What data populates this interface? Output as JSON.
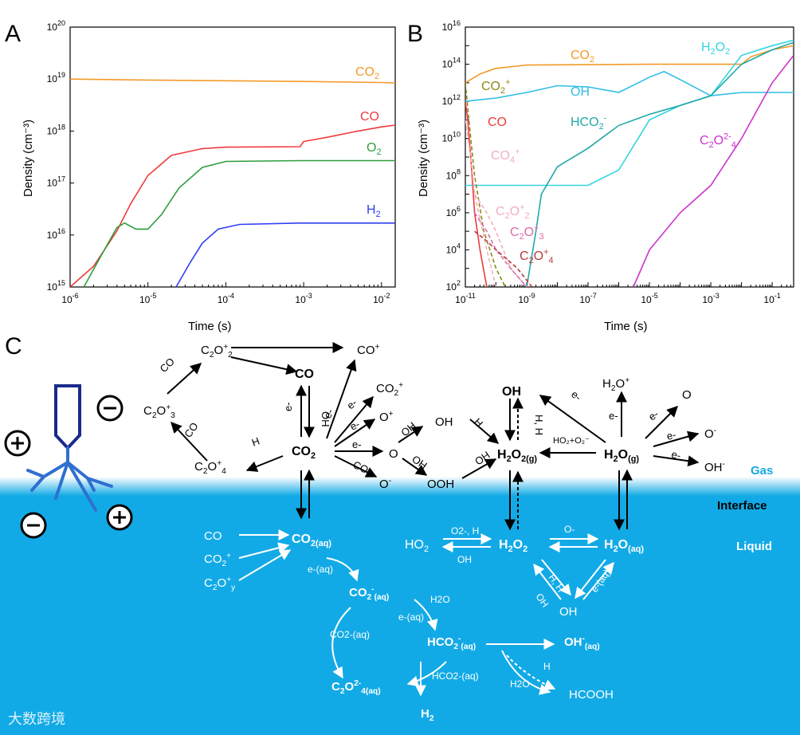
{
  "panels": {
    "a": "A",
    "b": "B",
    "c": "C"
  },
  "colors": {
    "co2": "#f39a2a",
    "co": "#ef3b3b",
    "o2": "#2e9e3e",
    "h2": "#2f3ff0",
    "h2o2": "#34d4e0",
    "oh": "#30bde6",
    "hco2": "#1fa8a8",
    "c2o4": "#cc33cc",
    "co2p": "#8a8a1a",
    "c2o2p": "#f0b0c0",
    "c2o3p": "#d86aa8",
    "c2o4p": "#b83a3a",
    "liquid": "#12aae6",
    "watermark": "#ffffff"
  },
  "chart_data": [
    {
      "id": "A",
      "type": "line",
      "xscale": "log",
      "yscale": "log",
      "xlabel": "Time (s)",
      "ylabel": "Density (cm⁻³)",
      "xlim": [
        1e-06,
        0.015
      ],
      "ylim": [
        1000000000000000.0,
        1e+20
      ],
      "xticks": [
        [
          "10",
          "-6"
        ],
        [
          "10",
          "-5"
        ],
        [
          "10",
          "-4"
        ],
        [
          "10",
          "-3"
        ],
        [
          "10",
          "-2"
        ]
      ],
      "yticks": [
        [
          "10",
          "15"
        ],
        [
          "10",
          "16"
        ],
        [
          "10",
          "17"
        ],
        [
          "10",
          "18"
        ],
        [
          "10",
          "19"
        ],
        [
          "10",
          "20"
        ]
      ],
      "series": [
        {
          "name": "CO2",
          "label": "CO",
          "sub": "2",
          "color_key": "co2",
          "points": [
            [
              1e-06,
              1e+19
            ],
            [
              1e-05,
              9.6e+18
            ],
            [
              0.0001,
              9.3e+18
            ],
            [
              0.001,
              9e+18
            ],
            [
              0.01,
              8.6e+18
            ],
            [
              0.015,
              8.4e+18
            ]
          ]
        },
        {
          "name": "CO",
          "label": "CO",
          "sub": "",
          "color_key": "co",
          "points": [
            [
              1e-06,
              1000000000000000.0
            ],
            [
              2e-06,
              2500000000000000.0
            ],
            [
              4e-06,
              1.2e+16
            ],
            [
              6e-06,
              4e+16
            ],
            [
              1e-05,
              1.4e+17
            ],
            [
              2e-05,
              3.4e+17
            ],
            [
              5e-05,
              4.6e+17
            ],
            [
              0.0001,
              4.9e+17
            ],
            [
              0.0009,
              5e+17
            ],
            [
              0.001,
              6.3e+17
            ],
            [
              0.002,
              7.6e+17
            ],
            [
              0.005,
              1e+18
            ],
            [
              0.01,
              1.2e+18
            ],
            [
              0.015,
              1.3e+18
            ]
          ]
        },
        {
          "name": "O2",
          "label": "O",
          "sub": "2",
          "color_key": "o2",
          "points": [
            [
              1.5e-06,
              1000000000000000.0
            ],
            [
              2.5e-06,
              4000000000000000.0
            ],
            [
              4e-06,
              1.4e+16
            ],
            [
              5e-06,
              1.7e+16
            ],
            [
              7e-06,
              1.3e+16
            ],
            [
              1e-05,
              1.3e+16
            ],
            [
              1.5e-05,
              2.5e+16
            ],
            [
              2.5e-05,
              8e+16
            ],
            [
              5e-05,
              2e+17
            ],
            [
              0.0001,
              2.6e+17
            ],
            [
              0.0009,
              2.7e+17
            ],
            [
              0.015,
              2.7e+17
            ]
          ]
        },
        {
          "name": "H2",
          "label": "H",
          "sub": "2",
          "color_key": "h2",
          "points": [
            [
              2.3e-05,
              1000000000000000.0
            ],
            [
              3.5e-05,
              3000000000000000.0
            ],
            [
              5e-05,
              7000000000000000.0
            ],
            [
              8e-05,
              1.3e+16
            ],
            [
              0.00015,
              1.6e+16
            ],
            [
              0.0009,
              1.7e+16
            ],
            [
              0.015,
              1.7e+16
            ]
          ]
        }
      ]
    },
    {
      "id": "B",
      "type": "line",
      "xscale": "log",
      "yscale": "log",
      "xlabel": "Time (s)",
      "ylabel": "Density (cm⁻³)",
      "xlim": [
        1e-11,
        0.5
      ],
      "ylim": [
        100.0,
        1e+16
      ],
      "xticks": [
        [
          "10",
          "-11"
        ],
        [
          "10",
          "-9"
        ],
        [
          "10",
          "-7"
        ],
        [
          "10",
          "-5"
        ],
        [
          "10",
          "-3"
        ],
        [
          "10",
          "-1"
        ]
      ],
      "yticks": [
        [
          "10",
          "2"
        ],
        [
          "10",
          "4"
        ],
        [
          "10",
          "6"
        ],
        [
          "10",
          "8"
        ],
        [
          "10",
          "10"
        ],
        [
          "10",
          "12"
        ],
        [
          "10",
          "14"
        ],
        [
          "10",
          "16"
        ]
      ],
      "series": [
        {
          "name": "CO2",
          "label": "CO",
          "sub": "2",
          "sup": "",
          "color_key": "co2",
          "points": [
            [
              1e-11,
              10000000000000.0
            ],
            [
              3e-11,
              30000000000000.0
            ],
            [
              1e-10,
              60000000000000.0
            ],
            [
              1e-09,
              90000000000000.0
            ],
            [
              1e-05,
              100000000000000.0
            ],
            [
              0.01,
              100000000000000.0
            ],
            [
              0.02,
              250000000000000.0
            ],
            [
              0.1,
              600000000000000.0
            ],
            [
              0.5,
              1000000000000000.0
            ]
          ]
        },
        {
          "name": "OH",
          "label": "OH",
          "sub": "",
          "sup": "",
          "color_key": "oh",
          "points": [
            [
              1e-11,
              1000000000000.0
            ],
            [
              1e-10,
              1500000000000.0
            ],
            [
              1e-09,
              3000000000000.0
            ],
            [
              1e-08,
              7000000000000.0
            ],
            [
              1e-07,
              6000000000000.0
            ],
            [
              1e-06,
              3000000000000.0
            ],
            [
              1e-05,
              20000000000000.0
            ],
            [
              3e-05,
              40000000000000.0
            ],
            [
              0.0001,
              15000000000000.0
            ],
            [
              0.001,
              2000000000000.0
            ],
            [
              0.01,
              3000000000000.0
            ],
            [
              0.5,
              3000000000000.0
            ]
          ]
        },
        {
          "name": "H2O2",
          "label": "H",
          "sub": "2",
          "mid": "O",
          "sub2": "2",
          "sup": "",
          "color_key": "h2o2",
          "points": [
            [
              1e-11,
              30000000.0
            ],
            [
              1e-09,
              30000000.0
            ],
            [
              1e-07,
              30000000.0
            ],
            [
              1e-06,
              200000000.0
            ],
            [
              1e-05,
              100000000000.0
            ],
            [
              0.0001,
              600000000000.0
            ],
            [
              0.001,
              2000000000000.0
            ],
            [
              0.01,
              300000000000000.0
            ],
            [
              0.1,
              1000000000000000.0
            ],
            [
              0.5,
              2000000000000000.0
            ]
          ]
        },
        {
          "name": "HCO2-",
          "label": "HCO",
          "sub": "2",
          "sup": "-",
          "color_key": "hco2",
          "points": [
            [
              1e-09,
              100.0
            ],
            [
              2e-09,
              100000.0
            ],
            [
              3e-09,
              10000000.0
            ],
            [
              1e-08,
              300000000.0
            ],
            [
              1e-07,
              3000000000.0
            ],
            [
              1e-06,
              50000000000.0
            ],
            [
              1e-05,
              200000000000.0
            ],
            [
              0.0001,
              600000000000.0
            ],
            [
              0.001,
              2000000000000.0
            ],
            [
              0.01,
              100000000000000.0
            ],
            [
              0.1,
              600000000000000.0
            ],
            [
              0.5,
              1500000000000000.0
            ]
          ]
        },
        {
          "name": "C2O4 2-",
          "label": "C",
          "sub": "2",
          "mid": "O",
          "sub2": "4",
          "sup": "2-",
          "color_key": "c2o4",
          "points": [
            [
              3e-06,
              100.0
            ],
            [
              1e-05,
              10000.0
            ],
            [
              0.0001,
              1000000.0
            ],
            [
              0.001,
              30000000.0
            ],
            [
              0.01,
              10000000000.0
            ],
            [
              0.1,
              10000000000000.0
            ],
            [
              0.5,
              300000000000000.0
            ]
          ]
        },
        {
          "name": "CO",
          "label": "CO",
          "sub": "",
          "sup": "",
          "color_key": "co",
          "points": [
            [
              1e-11,
              1000000000000.0
            ],
            [
              1.2e-11,
              100000000000.0
            ],
            [
              1.5e-11,
              1000000000.0
            ],
            [
              2e-11,
              1000000.0
            ],
            [
              3e-11,
              10000.0
            ],
            [
              5e-11,
              100.0
            ]
          ]
        },
        {
          "name": "CO2+",
          "label": "CO",
          "sub": "2",
          "sup": "+",
          "color_key": "co2p",
          "points": [
            [
              1e-11,
              10000000000000.0
            ],
            [
              1.5e-11,
              10000000000.0
            ],
            [
              2e-11,
              100000000.0
            ],
            [
              4e-11,
              100000.0
            ],
            [
              1e-10,
              1000.0
            ],
            [
              2e-10,
              100.0
            ]
          ]
        },
        {
          "name": "CO4+",
          "label": "CO",
          "sub": "4",
          "sup": "+",
          "color_key": "c2o2p",
          "points": [
            [
              1e-11,
              100000000000.0
            ],
            [
              1.5e-11,
              1000000000.0
            ],
            [
              2e-11,
              10000000.0
            ],
            [
              5e-11,
              10000.0
            ],
            [
              1e-10,
              100.0
            ]
          ]
        },
        {
          "name": "C2O2+",
          "label": "C",
          "sub": "2",
          "mid": "O",
          "sub2": "2",
          "sup": "+",
          "color_key": "c2o2p",
          "points": [
            [
              2e-11,
              10000000.0
            ],
            [
              5e-11,
              1000000.0
            ],
            [
              1e-10,
              100000.0
            ],
            [
              3e-10,
              1000.0
            ],
            [
              1e-09,
              100.0
            ]
          ]
        },
        {
          "name": "C2O3+",
          "label": "C",
          "sub": "2",
          "mid": "O",
          "sub2": "3",
          "sup": "+",
          "color_key": "c2o3p",
          "points": [
            [
              2e-11,
              1000000.0
            ],
            [
              5e-11,
              100000.0
            ],
            [
              1e-10,
              10000.0
            ],
            [
              3e-10,
              1000.0
            ],
            [
              1e-09,
              100.0
            ]
          ]
        },
        {
          "name": "C2O4+",
          "label": "C",
          "sub": "2",
          "mid": "O",
          "sub2": "4",
          "sup": "+",
          "color_key": "c2o4p",
          "points": [
            [
              2e-11,
              100000.0
            ],
            [
              5e-11,
              30000.0
            ],
            [
              1e-10,
              10000.0
            ],
            [
              5e-10,
              1000.0
            ],
            [
              1.5e-09,
              100.0
            ]
          ]
        }
      ]
    }
  ],
  "diagram": {
    "region_labels": {
      "gas": "Gas",
      "interface": "Interface",
      "liquid": "Liquid"
    },
    "gas_nodes": [
      {
        "id": "c2o2p",
        "t": "C",
        "s": "2",
        "m": "O",
        "s2": "2",
        "p": "+"
      },
      {
        "id": "cop_top",
        "t": "CO",
        "p": "+"
      },
      {
        "id": "co",
        "t": "CO"
      },
      {
        "id": "co2p_r",
        "t": "CO",
        "s": "2",
        "p": "+"
      },
      {
        "id": "c2o3p",
        "t": "C",
        "s": "2",
        "m": "O",
        "s2": "3",
        "p": "+"
      },
      {
        "id": "co2",
        "t": "CO",
        "s": "2"
      },
      {
        "id": "op",
        "t": "O",
        "p": "+"
      },
      {
        "id": "o_mid",
        "t": "O"
      },
      {
        "id": "om",
        "t": "O",
        "p": "-"
      },
      {
        "id": "c2o4p",
        "t": "C",
        "s": "2",
        "m": "O",
        "s2": "4",
        "p": "+"
      },
      {
        "id": "oh_mid",
        "t": "OH"
      },
      {
        "id": "ooh",
        "t": "OOH"
      },
      {
        "id": "oh_top",
        "t": "OH"
      },
      {
        "id": "h2o2g",
        "t": "H",
        "s": "2",
        "m": "O",
        "s2": "2(g)"
      },
      {
        "id": "h2og",
        "t": "H",
        "s": "2",
        "m": "O",
        "s2": "(g)"
      },
      {
        "id": "h2op",
        "t": "H",
        "s": "2",
        "m": "O",
        "p": "+"
      },
      {
        "id": "o_r",
        "t": "O"
      },
      {
        "id": "om_r",
        "t": "O",
        "p": "-"
      },
      {
        "id": "ohm_r",
        "t": "OH",
        "p": "-"
      }
    ],
    "gas_edge_labels": [
      "CO",
      "CO",
      "e-",
      "OH",
      "e-",
      "e-",
      "e-",
      "e-",
      "CO",
      "H",
      "OH",
      "OH",
      "H",
      "OH",
      "H, H",
      "e-",
      "e-",
      "e-",
      "e-",
      "e-"
    ],
    "liquid_nodes": [
      {
        "id": "lco",
        "t": "CO"
      },
      {
        "id": "lco2p",
        "t": "CO",
        "s": "2",
        "p": "+"
      },
      {
        "id": "lc2oy",
        "t": "C",
        "s": "2",
        "m": "O",
        "s2": "y",
        "p": "+"
      },
      {
        "id": "lco2aq",
        "t": "CO",
        "s": "2(aq)"
      },
      {
        "id": "lco2maq",
        "t": "CO",
        "s": "2",
        "p": "-",
        "s2": "(aq)"
      },
      {
        "id": "lhco2aq",
        "t": "HCO",
        "s": "2",
        "p": "-",
        "s2": "(aq)"
      },
      {
        "id": "lc2o4aq",
        "t": "C",
        "s": "2",
        "m": "O",
        "s2": "4",
        "p": "2-",
        "s3": "(aq)"
      },
      {
        "id": "lh2",
        "t": "H",
        "s": "2"
      },
      {
        "id": "lohaq",
        "t": "OH",
        "p": "-",
        "s2": "(aq)"
      },
      {
        "id": "lhcooh",
        "t": "HCOOH"
      },
      {
        "id": "lho2",
        "t": "HO",
        "s": "2"
      },
      {
        "id": "lh2o2",
        "t": "H",
        "s": "2",
        "m": "O",
        "s2": "2"
      },
      {
        "id": "lh2oaq",
        "t": "H",
        "s": "2",
        "m": "O",
        "s2": "(aq)"
      },
      {
        "id": "loh",
        "t": "OH"
      }
    ],
    "liquid_edge_labels": [
      "e-(aq)",
      "H2O",
      "e-(aq)",
      "CO2-(aq)",
      "HCO2-(aq)",
      "H2O",
      "H",
      "O2-, H",
      "OH",
      "O-",
      "H, H",
      "OH",
      "e-(aq)"
    ],
    "watermark": "大数跨境"
  }
}
